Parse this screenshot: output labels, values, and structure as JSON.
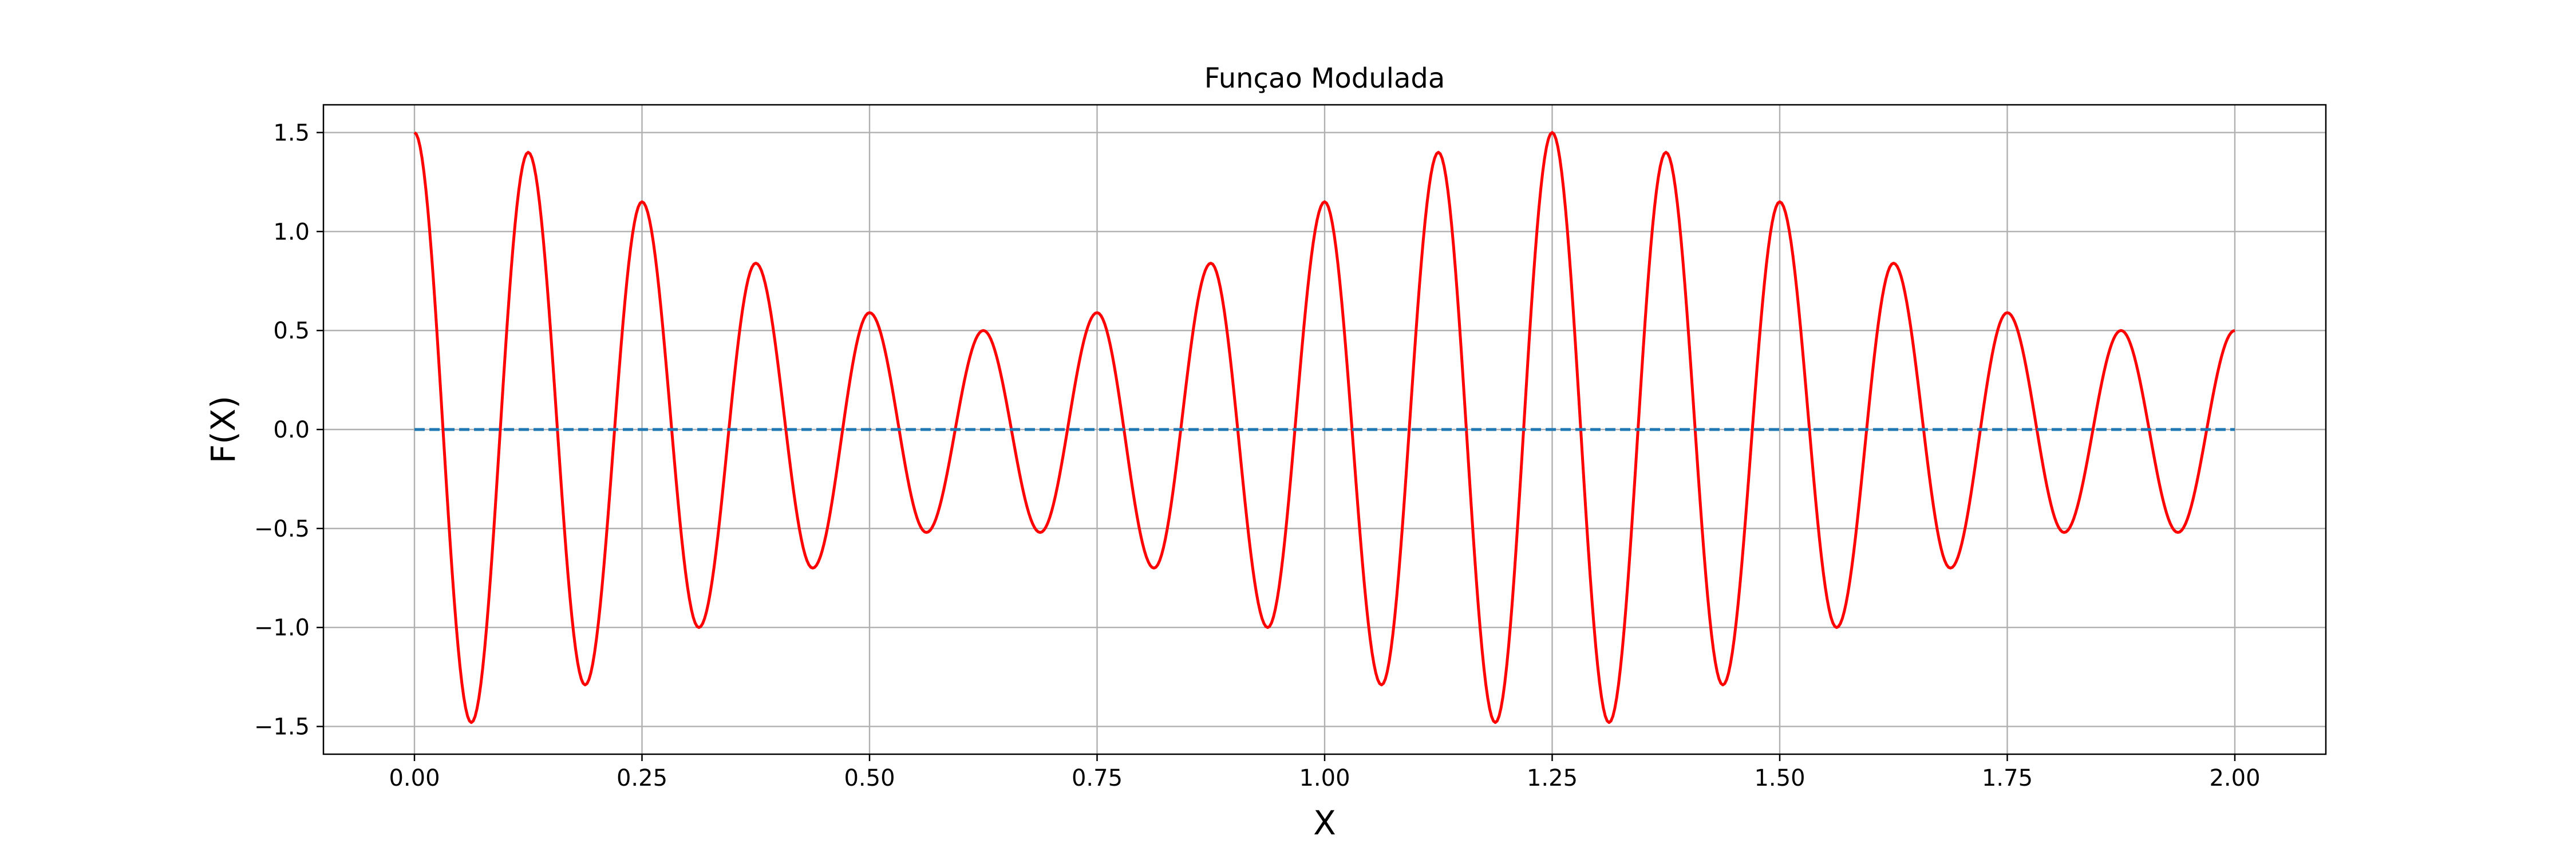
{
  "chart_data": {
    "type": "line",
    "title": "Funçao Modulada",
    "xlabel": "X",
    "ylabel": "F(X)",
    "xlim": [
      -0.1,
      2.1
    ],
    "ylim": [
      -1.64,
      1.64
    ],
    "grid": true,
    "xticks": [
      {
        "value": 0.0,
        "label": "0.00"
      },
      {
        "value": 0.25,
        "label": "0.25"
      },
      {
        "value": 0.5,
        "label": "0.50"
      },
      {
        "value": 0.75,
        "label": "0.75"
      },
      {
        "value": 1.0,
        "label": "1.00"
      },
      {
        "value": 1.25,
        "label": "1.25"
      },
      {
        "value": 1.5,
        "label": "1.50"
      },
      {
        "value": 1.75,
        "label": "1.75"
      },
      {
        "value": 2.0,
        "label": "2.00"
      }
    ],
    "yticks": [
      {
        "value": 1.5,
        "label": "1.5"
      },
      {
        "value": 1.0,
        "label": "1.0"
      },
      {
        "value": 0.5,
        "label": "0.5"
      },
      {
        "value": 0.0,
        "label": "0.0"
      },
      {
        "value": -0.5,
        "label": "−0.5"
      },
      {
        "value": -1.0,
        "label": "−1.0"
      },
      {
        "value": -1.5,
        "label": "−1.5"
      }
    ],
    "series": [
      {
        "style": "solid",
        "color": "#ff0000",
        "points": [
          [
            0.0,
            1.5
          ],
          [
            0.0625,
            -1.48
          ],
          [
            0.125,
            1.4
          ],
          [
            0.1875,
            -1.29
          ],
          [
            0.25,
            1.15
          ],
          [
            0.3125,
            -1.0
          ],
          [
            0.375,
            0.84
          ],
          [
            0.4375,
            -0.7
          ],
          [
            0.5,
            0.59
          ],
          [
            0.5625,
            -0.52
          ],
          [
            0.625,
            0.5
          ],
          [
            0.6875,
            -0.52
          ],
          [
            0.75,
            0.59
          ],
          [
            0.8125,
            -0.7
          ],
          [
            0.875,
            0.84
          ],
          [
            0.9375,
            -1.0
          ],
          [
            1.0,
            1.15
          ],
          [
            1.0625,
            -1.29
          ],
          [
            1.125,
            1.4
          ],
          [
            1.1875,
            -1.48
          ],
          [
            1.25,
            1.5
          ],
          [
            1.3125,
            -1.48
          ],
          [
            1.375,
            1.4
          ],
          [
            1.4375,
            -1.29
          ],
          [
            1.5,
            1.15
          ],
          [
            1.5625,
            -1.0
          ],
          [
            1.625,
            0.84
          ],
          [
            1.6875,
            -0.7
          ],
          [
            1.75,
            0.59
          ],
          [
            1.8125,
            -0.52
          ],
          [
            1.875,
            0.5
          ],
          [
            1.9375,
            -0.52
          ],
          [
            2.0,
            0.5
          ]
        ]
      },
      {
        "style": "dashed",
        "color": "#1f77b4",
        "points": [
          [
            0.0,
            0.0
          ],
          [
            2.0,
            0.0
          ]
        ]
      }
    ]
  }
}
